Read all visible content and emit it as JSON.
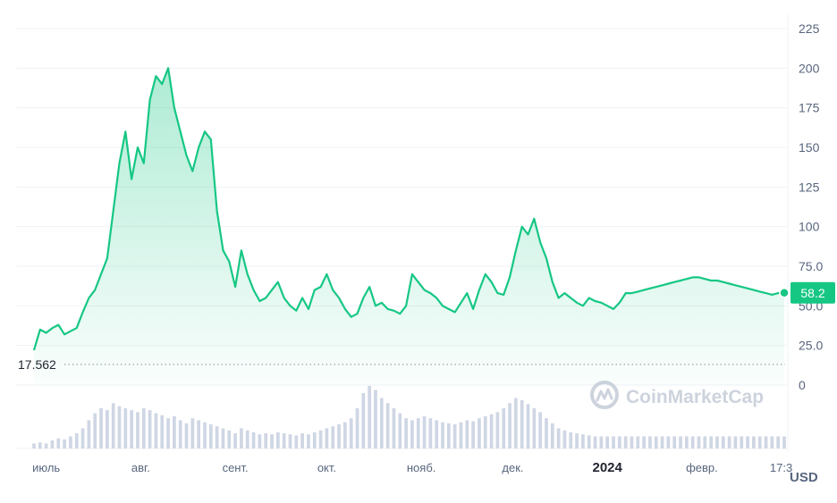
{
  "chart_data": {
    "type": "area",
    "title": "",
    "xlabel": "",
    "ylabel": "",
    "currency_label": "USD",
    "ylim": [
      0,
      225
    ],
    "y_ticks": [
      "0",
      "25.0",
      "50.0",
      "75.0",
      "100",
      "125",
      "150",
      "175",
      "200",
      "225"
    ],
    "x_ticks": [
      {
        "label": "июль",
        "day": 4
      },
      {
        "label": "авг.",
        "day": 35
      },
      {
        "label": "сент.",
        "day": 66
      },
      {
        "label": "окт.",
        "day": 96
      },
      {
        "label": "нояб.",
        "day": 127
      },
      {
        "label": "дек.",
        "day": 157
      },
      {
        "label": "2024",
        "day": 188
      },
      {
        "label": "февр.",
        "day": 219
      },
      {
        "label": "17:3",
        "day": 245
      }
    ],
    "start_label": "17.562",
    "start_value": 17.562,
    "current_value": 58.2,
    "current_label": "58.2",
    "watermark": "CoinMarketCap",
    "colors": {
      "line": "#16c784",
      "label_bg": "#16c784",
      "grid": "#eff2f5",
      "text": "#58667e",
      "volume": "#cfd6e4"
    },
    "series": [
      {
        "name": "",
        "x": [
          0,
          2,
          4,
          6,
          8,
          10,
          12,
          14,
          16,
          18,
          20,
          22,
          24,
          26,
          28,
          30,
          32,
          34,
          36,
          38,
          40,
          42,
          44,
          46,
          48,
          50,
          52,
          54,
          56,
          58,
          60,
          62,
          64,
          66,
          68,
          70,
          72,
          74,
          76,
          78,
          80,
          82,
          84,
          86,
          88,
          90,
          92,
          94,
          96,
          98,
          100,
          102,
          104,
          106,
          108,
          110,
          112,
          114,
          116,
          118,
          120,
          122,
          124,
          126,
          128,
          130,
          132,
          134,
          136,
          138,
          140,
          142,
          144,
          146,
          148,
          150,
          152,
          154,
          156,
          158,
          160,
          162,
          164,
          166,
          168,
          170,
          172,
          174,
          176,
          178,
          180,
          182,
          184,
          186,
          188,
          190,
          192,
          194,
          196,
          198,
          200,
          202,
          204,
          206,
          208,
          210,
          212,
          214,
          216,
          218,
          220,
          222,
          224,
          226,
          228,
          230,
          232,
          234,
          236,
          238,
          240,
          242,
          244,
          246
        ],
        "values": [
          22,
          35,
          33,
          36,
          38,
          32,
          34,
          36,
          46,
          55,
          60,
          70,
          80,
          110,
          140,
          160,
          130,
          150,
          140,
          180,
          195,
          190,
          200,
          175,
          160,
          145,
          135,
          150,
          160,
          155,
          110,
          85,
          78,
          62,
          85,
          70,
          60,
          53,
          55,
          60,
          65,
          55,
          50,
          47,
          55,
          48,
          60,
          62,
          70,
          60,
          55,
          48,
          43,
          45,
          55,
          62,
          50,
          52,
          48,
          47,
          45,
          50,
          70,
          65,
          60,
          58,
          55,
          50,
          48,
          46,
          52,
          58,
          48,
          60,
          70,
          65,
          58,
          57,
          68,
          85,
          100,
          95,
          105,
          90,
          80,
          65,
          55,
          58,
          55,
          52,
          50,
          55,
          53,
          52,
          50,
          48,
          52,
          58,
          58,
          59,
          60,
          61,
          62,
          63,
          64,
          65,
          66,
          67,
          68,
          68,
          67,
          66,
          66,
          65,
          64,
          63,
          62,
          61,
          60,
          59,
          58,
          57,
          58,
          58.2
        ],
        "volume": [
          5,
          6,
          5,
          8,
          10,
          9,
          12,
          15,
          20,
          28,
          35,
          40,
          38,
          45,
          42,
          40,
          38,
          36,
          40,
          38,
          35,
          33,
          30,
          32,
          28,
          25,
          30,
          28,
          26,
          24,
          22,
          20,
          18,
          15,
          20,
          18,
          16,
          14,
          15,
          14,
          16,
          15,
          14,
          13,
          15,
          14,
          16,
          18,
          20,
          22,
          24,
          26,
          30,
          40,
          55,
          62,
          58,
          50,
          45,
          40,
          35,
          30,
          28,
          30,
          32,
          30,
          28,
          26,
          25,
          24,
          26,
          28,
          27,
          30,
          32,
          34,
          36,
          40,
          45,
          50,
          48,
          44,
          40,
          36,
          30,
          25,
          20,
          18,
          16,
          15,
          14,
          13,
          12,
          12,
          12,
          12,
          12,
          12,
          12,
          12,
          12,
          12,
          12,
          12,
          12,
          12,
          12,
          12,
          12,
          12,
          12,
          12,
          12,
          12,
          12,
          12,
          12,
          12,
          12,
          12,
          12,
          12,
          12,
          12
        ]
      }
    ]
  }
}
